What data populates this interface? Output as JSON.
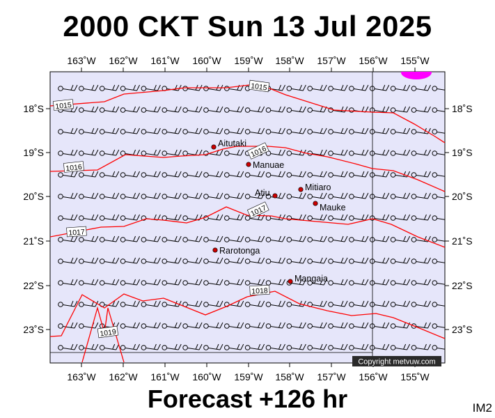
{
  "header": {
    "title": "2000 CKT Sun 13 Jul 2025"
  },
  "footer": {
    "forecast": "Forecast +126 hr",
    "code": "IM2"
  },
  "map": {
    "lon_labels": [
      "163˚W",
      "162˚W",
      "161˚W",
      "160˚W",
      "159˚W",
      "158˚W",
      "157˚W",
      "156˚W",
      "155˚W"
    ],
    "lat_labels": [
      "18˚S",
      "19˚S",
      "20˚S",
      "21˚S",
      "22˚S",
      "23˚S"
    ],
    "places": [
      "Aitutaki",
      "Manuae",
      "Atiu",
      "Mitiaro",
      "Mauke",
      "Rarotonga",
      "Mangaia"
    ],
    "isobar_labels": [
      "1015",
      "1015",
      "1016",
      "1016",
      "1017",
      "1017",
      "1018",
      "1019"
    ],
    "copyright": "Copyright metvuw.com",
    "colors": {
      "ocean": "#e6e6fa",
      "isobar": "#ff0000",
      "high_marker": "#ff00ff",
      "island": "#cc0000"
    }
  }
}
